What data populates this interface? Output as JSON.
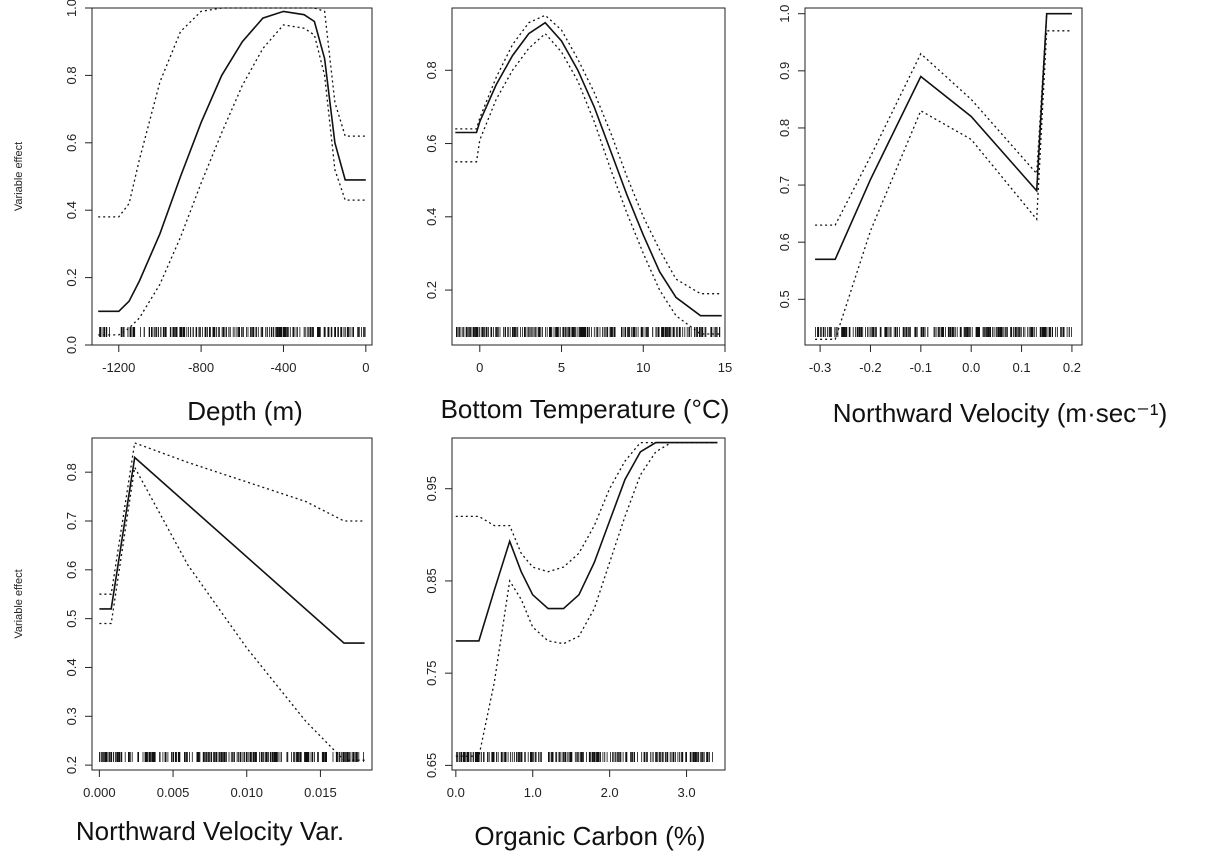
{
  "chart_data": [
    {
      "type": "line",
      "xlabel": "Depth (m)",
      "ylabel": "Variable effect",
      "xlim": [
        -1330,
        30
      ],
      "ylim": [
        0,
        1.0
      ],
      "xticks": [
        -1200,
        -800,
        -400,
        0
      ],
      "xtick_labels": [
        "-1200",
        "-800",
        "-400",
        "0"
      ],
      "yticks": [
        0.0,
        0.2,
        0.4,
        0.6,
        0.8,
        1.0
      ],
      "ytick_labels": [
        "0.0",
        "0.2",
        "0.4",
        "0.6",
        "0.8",
        "1.0"
      ],
      "grid": false,
      "series": [
        {
          "style": "solid",
          "x": [
            -1300,
            -1200,
            -1150,
            -1100,
            -1000,
            -900,
            -800,
            -700,
            -600,
            -500,
            -400,
            -300,
            -250,
            -200,
            -150,
            -100,
            -50,
            0
          ],
          "y": [
            0.1,
            0.1,
            0.13,
            0.19,
            0.33,
            0.5,
            0.66,
            0.8,
            0.9,
            0.97,
            0.99,
            0.98,
            0.96,
            0.85,
            0.6,
            0.49,
            0.49,
            0.49
          ]
        },
        {
          "style": "dotted",
          "x": [
            -1300,
            -1200,
            -1150,
            -1100,
            -1000,
            -900,
            -800,
            -700,
            -600,
            -500,
            -400,
            -300,
            -250,
            -200,
            -150,
            -100,
            -50,
            0
          ],
          "y": [
            0.38,
            0.38,
            0.42,
            0.55,
            0.78,
            0.93,
            0.99,
            1.0,
            1.0,
            1.0,
            1.0,
            1.0,
            1.0,
            0.99,
            0.72,
            0.62,
            0.62,
            0.62
          ]
        },
        {
          "style": "dotted",
          "x": [
            -1300,
            -1200,
            -1150,
            -1100,
            -1000,
            -900,
            -800,
            -700,
            -600,
            -500,
            -400,
            -300,
            -250,
            -200,
            -150,
            -100,
            -50,
            0
          ],
          "y": [
            0.03,
            0.03,
            0.05,
            0.08,
            0.18,
            0.32,
            0.48,
            0.63,
            0.77,
            0.88,
            0.95,
            0.94,
            0.92,
            0.8,
            0.52,
            0.43,
            0.43,
            0.43
          ]
        }
      ]
    },
    {
      "type": "line",
      "xlabel": "Bottom Temperature (°C)",
      "ylabel": "",
      "xlim": [
        -1.7,
        15
      ],
      "ylim": [
        0.05,
        0.97
      ],
      "xticks": [
        0,
        5,
        10,
        15
      ],
      "xtick_labels": [
        "0",
        "5",
        "10",
        "15"
      ],
      "yticks": [
        0.2,
        0.4,
        0.6,
        0.8
      ],
      "ytick_labels": [
        "0.2",
        "0.4",
        "0.6",
        "0.8"
      ],
      "grid": false,
      "series": [
        {
          "style": "solid",
          "x": [
            -1.5,
            -0.2,
            0,
            1,
            2,
            3,
            4,
            5,
            6,
            7,
            8,
            9,
            10,
            11,
            12,
            13.5,
            14.8
          ],
          "y": [
            0.63,
            0.63,
            0.66,
            0.76,
            0.84,
            0.9,
            0.93,
            0.88,
            0.8,
            0.7,
            0.58,
            0.46,
            0.35,
            0.25,
            0.18,
            0.13,
            0.13
          ]
        },
        {
          "style": "dotted",
          "x": [
            -1.5,
            -0.2,
            0,
            1,
            2,
            3,
            4,
            5,
            6,
            7,
            8,
            9,
            10,
            11,
            12,
            13.5,
            14.8
          ],
          "y": [
            0.64,
            0.64,
            0.67,
            0.78,
            0.87,
            0.93,
            0.95,
            0.91,
            0.83,
            0.74,
            0.63,
            0.51,
            0.4,
            0.31,
            0.23,
            0.19,
            0.19
          ]
        },
        {
          "style": "dotted",
          "x": [
            -1.5,
            -0.2,
            0,
            1,
            2,
            3,
            4,
            5,
            6,
            7,
            8,
            9,
            10,
            11,
            12,
            13.5,
            14.8
          ],
          "y": [
            0.55,
            0.55,
            0.61,
            0.72,
            0.8,
            0.86,
            0.9,
            0.85,
            0.77,
            0.66,
            0.53,
            0.41,
            0.3,
            0.2,
            0.13,
            0.08,
            0.08
          ]
        }
      ]
    },
    {
      "type": "line",
      "xlabel": "Northward Velocity (m·sec⁻¹)",
      "ylabel": "",
      "xlim": [
        -0.33,
        0.22
      ],
      "ylim": [
        0.42,
        1.01
      ],
      "xticks": [
        -0.3,
        -0.2,
        -0.1,
        0.0,
        0.1,
        0.2
      ],
      "xtick_labels": [
        "-0.3",
        "-0.2",
        "-0.1",
        "0.0",
        "0.1",
        "0.2"
      ],
      "yticks": [
        0.5,
        0.6,
        0.7,
        0.8,
        0.9,
        1.0
      ],
      "ytick_labels": [
        "0.5",
        "0.6",
        "0.7",
        "0.8",
        "0.9",
        "1.0"
      ],
      "grid": false,
      "series": [
        {
          "style": "solid",
          "x": [
            -0.31,
            -0.27,
            -0.2,
            -0.1,
            0.0,
            0.13,
            0.15,
            0.16,
            0.2
          ],
          "y": [
            0.57,
            0.57,
            0.71,
            0.89,
            0.82,
            0.69,
            1.0,
            1.0,
            1.0
          ]
        },
        {
          "style": "dotted",
          "x": [
            -0.31,
            -0.27,
            -0.2,
            -0.1,
            0.0,
            0.13,
            0.15,
            0.16,
            0.2
          ],
          "y": [
            0.63,
            0.63,
            0.75,
            0.93,
            0.85,
            0.72,
            1.0,
            1.0,
            1.0
          ]
        },
        {
          "style": "dotted",
          "x": [
            -0.31,
            -0.27,
            -0.2,
            -0.1,
            0.0,
            0.13,
            0.15,
            0.16,
            0.2
          ],
          "y": [
            0.43,
            0.43,
            0.62,
            0.83,
            0.78,
            0.64,
            0.97,
            0.97,
            0.97
          ]
        }
      ]
    },
    {
      "type": "line",
      "xlabel": "Northward Velocity Var.",
      "ylabel": "Variable effect",
      "xlim": [
        -0.0005,
        0.0185
      ],
      "ylim": [
        0.19,
        0.87
      ],
      "xticks": [
        0.0,
        0.005,
        0.01,
        0.015
      ],
      "xtick_labels": [
        "0.000",
        "0.005",
        "0.010",
        "0.015"
      ],
      "yticks": [
        0.2,
        0.3,
        0.4,
        0.5,
        0.6,
        0.7,
        0.8
      ],
      "ytick_labels": [
        "0.2",
        "0.3",
        "0.4",
        "0.5",
        "0.6",
        "0.7",
        "0.8"
      ],
      "grid": false,
      "series": [
        {
          "style": "solid",
          "x": [
            0.0,
            0.0008,
            0.0024,
            0.0166,
            0.018
          ],
          "y": [
            0.52,
            0.52,
            0.83,
            0.45,
            0.45
          ]
        },
        {
          "style": "dotted",
          "x": [
            0.0,
            0.0008,
            0.0024,
            0.006,
            0.01,
            0.014,
            0.0166,
            0.018
          ],
          "y": [
            0.55,
            0.55,
            0.86,
            0.82,
            0.78,
            0.74,
            0.7,
            0.7
          ]
        },
        {
          "style": "dotted",
          "x": [
            0.0,
            0.0008,
            0.0024,
            0.006,
            0.01,
            0.014,
            0.0166,
            0.018
          ],
          "y": [
            0.49,
            0.49,
            0.81,
            0.61,
            0.44,
            0.29,
            0.21,
            0.21
          ]
        }
      ]
    },
    {
      "type": "line",
      "xlabel": "Organic Carbon (%)",
      "ylabel": "",
      "xlim": [
        -0.05,
        3.5
      ],
      "ylim": [
        0.645,
        1.005
      ],
      "xticks": [
        0.0,
        1.0,
        2.0,
        3.0
      ],
      "xtick_labels": [
        "0.0",
        "1.0",
        "2.0",
        "3.0"
      ],
      "yticks": [
        0.65,
        0.75,
        0.85,
        0.95
      ],
      "ytick_labels": [
        "0.65",
        "0.75",
        "0.85",
        "0.95"
      ],
      "grid": false,
      "series": [
        {
          "style": "solid",
          "x": [
            0.0,
            0.3,
            0.5,
            0.7,
            0.85,
            1.0,
            1.2,
            1.4,
            1.6,
            1.8,
            2.0,
            2.2,
            2.4,
            2.6,
            2.8,
            3.0,
            3.4
          ],
          "y": [
            0.785,
            0.785,
            0.84,
            0.893,
            0.86,
            0.835,
            0.82,
            0.82,
            0.835,
            0.87,
            0.915,
            0.96,
            0.99,
            1.0,
            1.0,
            1.0,
            1.0
          ]
        },
        {
          "style": "dotted",
          "x": [
            0.0,
            0.3,
            0.5,
            0.7,
            0.85,
            1.0,
            1.2,
            1.4,
            1.6,
            1.8,
            2.0,
            2.2,
            2.4,
            2.6,
            2.8,
            3.0,
            3.4
          ],
          "y": [
            0.92,
            0.92,
            0.91,
            0.91,
            0.88,
            0.865,
            0.86,
            0.865,
            0.88,
            0.91,
            0.95,
            0.98,
            1.0,
            1.0,
            1.0,
            1.0,
            1.0
          ]
        },
        {
          "style": "dotted",
          "x": [
            0.0,
            0.3,
            0.5,
            0.7,
            0.85,
            1.0,
            1.2,
            1.4,
            1.6,
            1.8,
            2.0,
            2.2,
            2.4,
            2.6,
            2.8,
            3.0,
            3.4
          ],
          "y": [
            0.66,
            0.66,
            0.74,
            0.85,
            0.83,
            0.8,
            0.785,
            0.782,
            0.79,
            0.82,
            0.87,
            0.92,
            0.965,
            0.99,
            1.0,
            1.0,
            1.0
          ]
        }
      ]
    }
  ]
}
